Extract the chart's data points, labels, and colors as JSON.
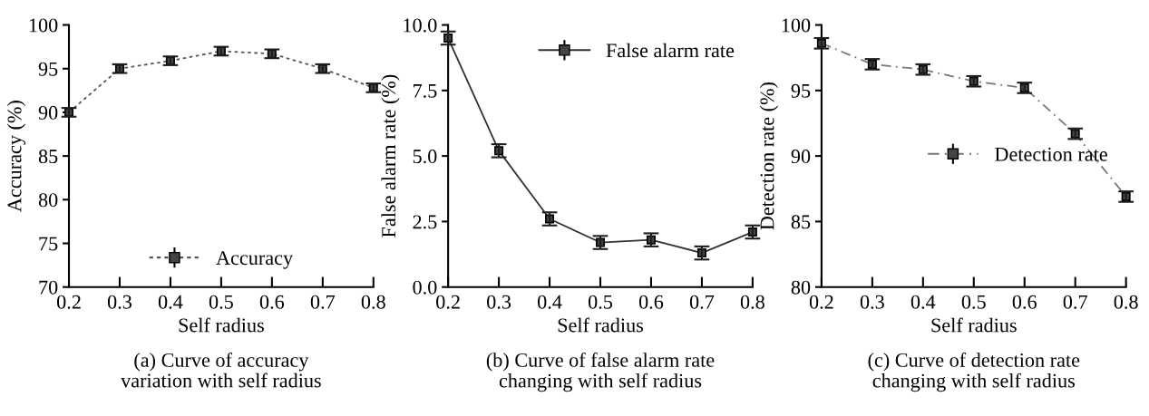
{
  "chart_data": [
    {
      "type": "line",
      "title": "(a) Curve of accuracy\nvariation with self radius",
      "xlabel": "Self radius",
      "ylabel": "Accuracy (%)",
      "x": [
        0.2,
        0.3,
        0.4,
        0.5,
        0.6,
        0.7,
        0.8
      ],
      "xlim": [
        0.2,
        0.8
      ],
      "xticks": [
        0.2,
        0.3,
        0.4,
        0.5,
        0.6,
        0.7,
        0.8
      ],
      "ylim": [
        70,
        100
      ],
      "yticks": [
        70,
        75,
        80,
        85,
        90,
        95,
        100
      ],
      "marker": "square",
      "line_style": "dotted",
      "legend": "bottom",
      "grid": false,
      "series": [
        {
          "name": "Accuracy",
          "color": "#555555",
          "values": [
            90.0,
            95.0,
            95.9,
            97.0,
            96.7,
            95.0,
            92.8
          ],
          "errors": [
            0.5,
            0.5,
            0.5,
            0.5,
            0.5,
            0.5,
            0.5
          ]
        }
      ]
    },
    {
      "type": "line",
      "title": "(b) Curve of false alarm rate\nchanging with self radius",
      "xlabel": "Self radius",
      "ylabel": "False alarm rate (%)",
      "x": [
        0.2,
        0.3,
        0.4,
        0.5,
        0.6,
        0.7,
        0.8
      ],
      "xlim": [
        0.2,
        0.8
      ],
      "xticks": [
        0.2,
        0.3,
        0.4,
        0.5,
        0.6,
        0.7,
        0.8
      ],
      "ylim": [
        0,
        10
      ],
      "yticks": [
        {
          "value": 0,
          "label": "0.0"
        },
        2.5,
        {
          "value": 5,
          "label": "5.0"
        },
        7.5,
        {
          "value": 10,
          "label": "10.0"
        }
      ],
      "marker": "square",
      "line_style": "solid",
      "legend": "top right",
      "grid": false,
      "series": [
        {
          "name": "False alarm rate",
          "color": "#333333",
          "values": [
            9.5,
            5.2,
            2.6,
            1.7,
            1.8,
            1.3,
            2.1
          ],
          "errors": [
            0.25,
            0.25,
            0.25,
            0.25,
            0.25,
            0.25,
            0.25
          ]
        }
      ]
    },
    {
      "type": "line",
      "title": "(c) Curve of detection rate\nchanging with self radius",
      "xlabel": "Self radius",
      "ylabel": "Detection rate (%)",
      "x": [
        0.2,
        0.3,
        0.4,
        0.5,
        0.6,
        0.7,
        0.8
      ],
      "xlim": [
        0.2,
        0.8
      ],
      "xticks": [
        0.2,
        0.3,
        0.4,
        0.5,
        0.6,
        0.7,
        0.8
      ],
      "ylim": [
        80,
        100
      ],
      "yticks": [
        80,
        85,
        90,
        95,
        100
      ],
      "marker": "square",
      "line_style": "dashdot",
      "legend": "right",
      "grid": false,
      "series": [
        {
          "name": "Detection rate",
          "color": "#777777",
          "values": [
            98.6,
            97.0,
            96.6,
            95.7,
            95.2,
            91.7,
            86.9
          ],
          "errors": [
            0.4,
            0.4,
            0.4,
            0.4,
            0.4,
            0.4,
            0.4
          ]
        }
      ]
    }
  ]
}
